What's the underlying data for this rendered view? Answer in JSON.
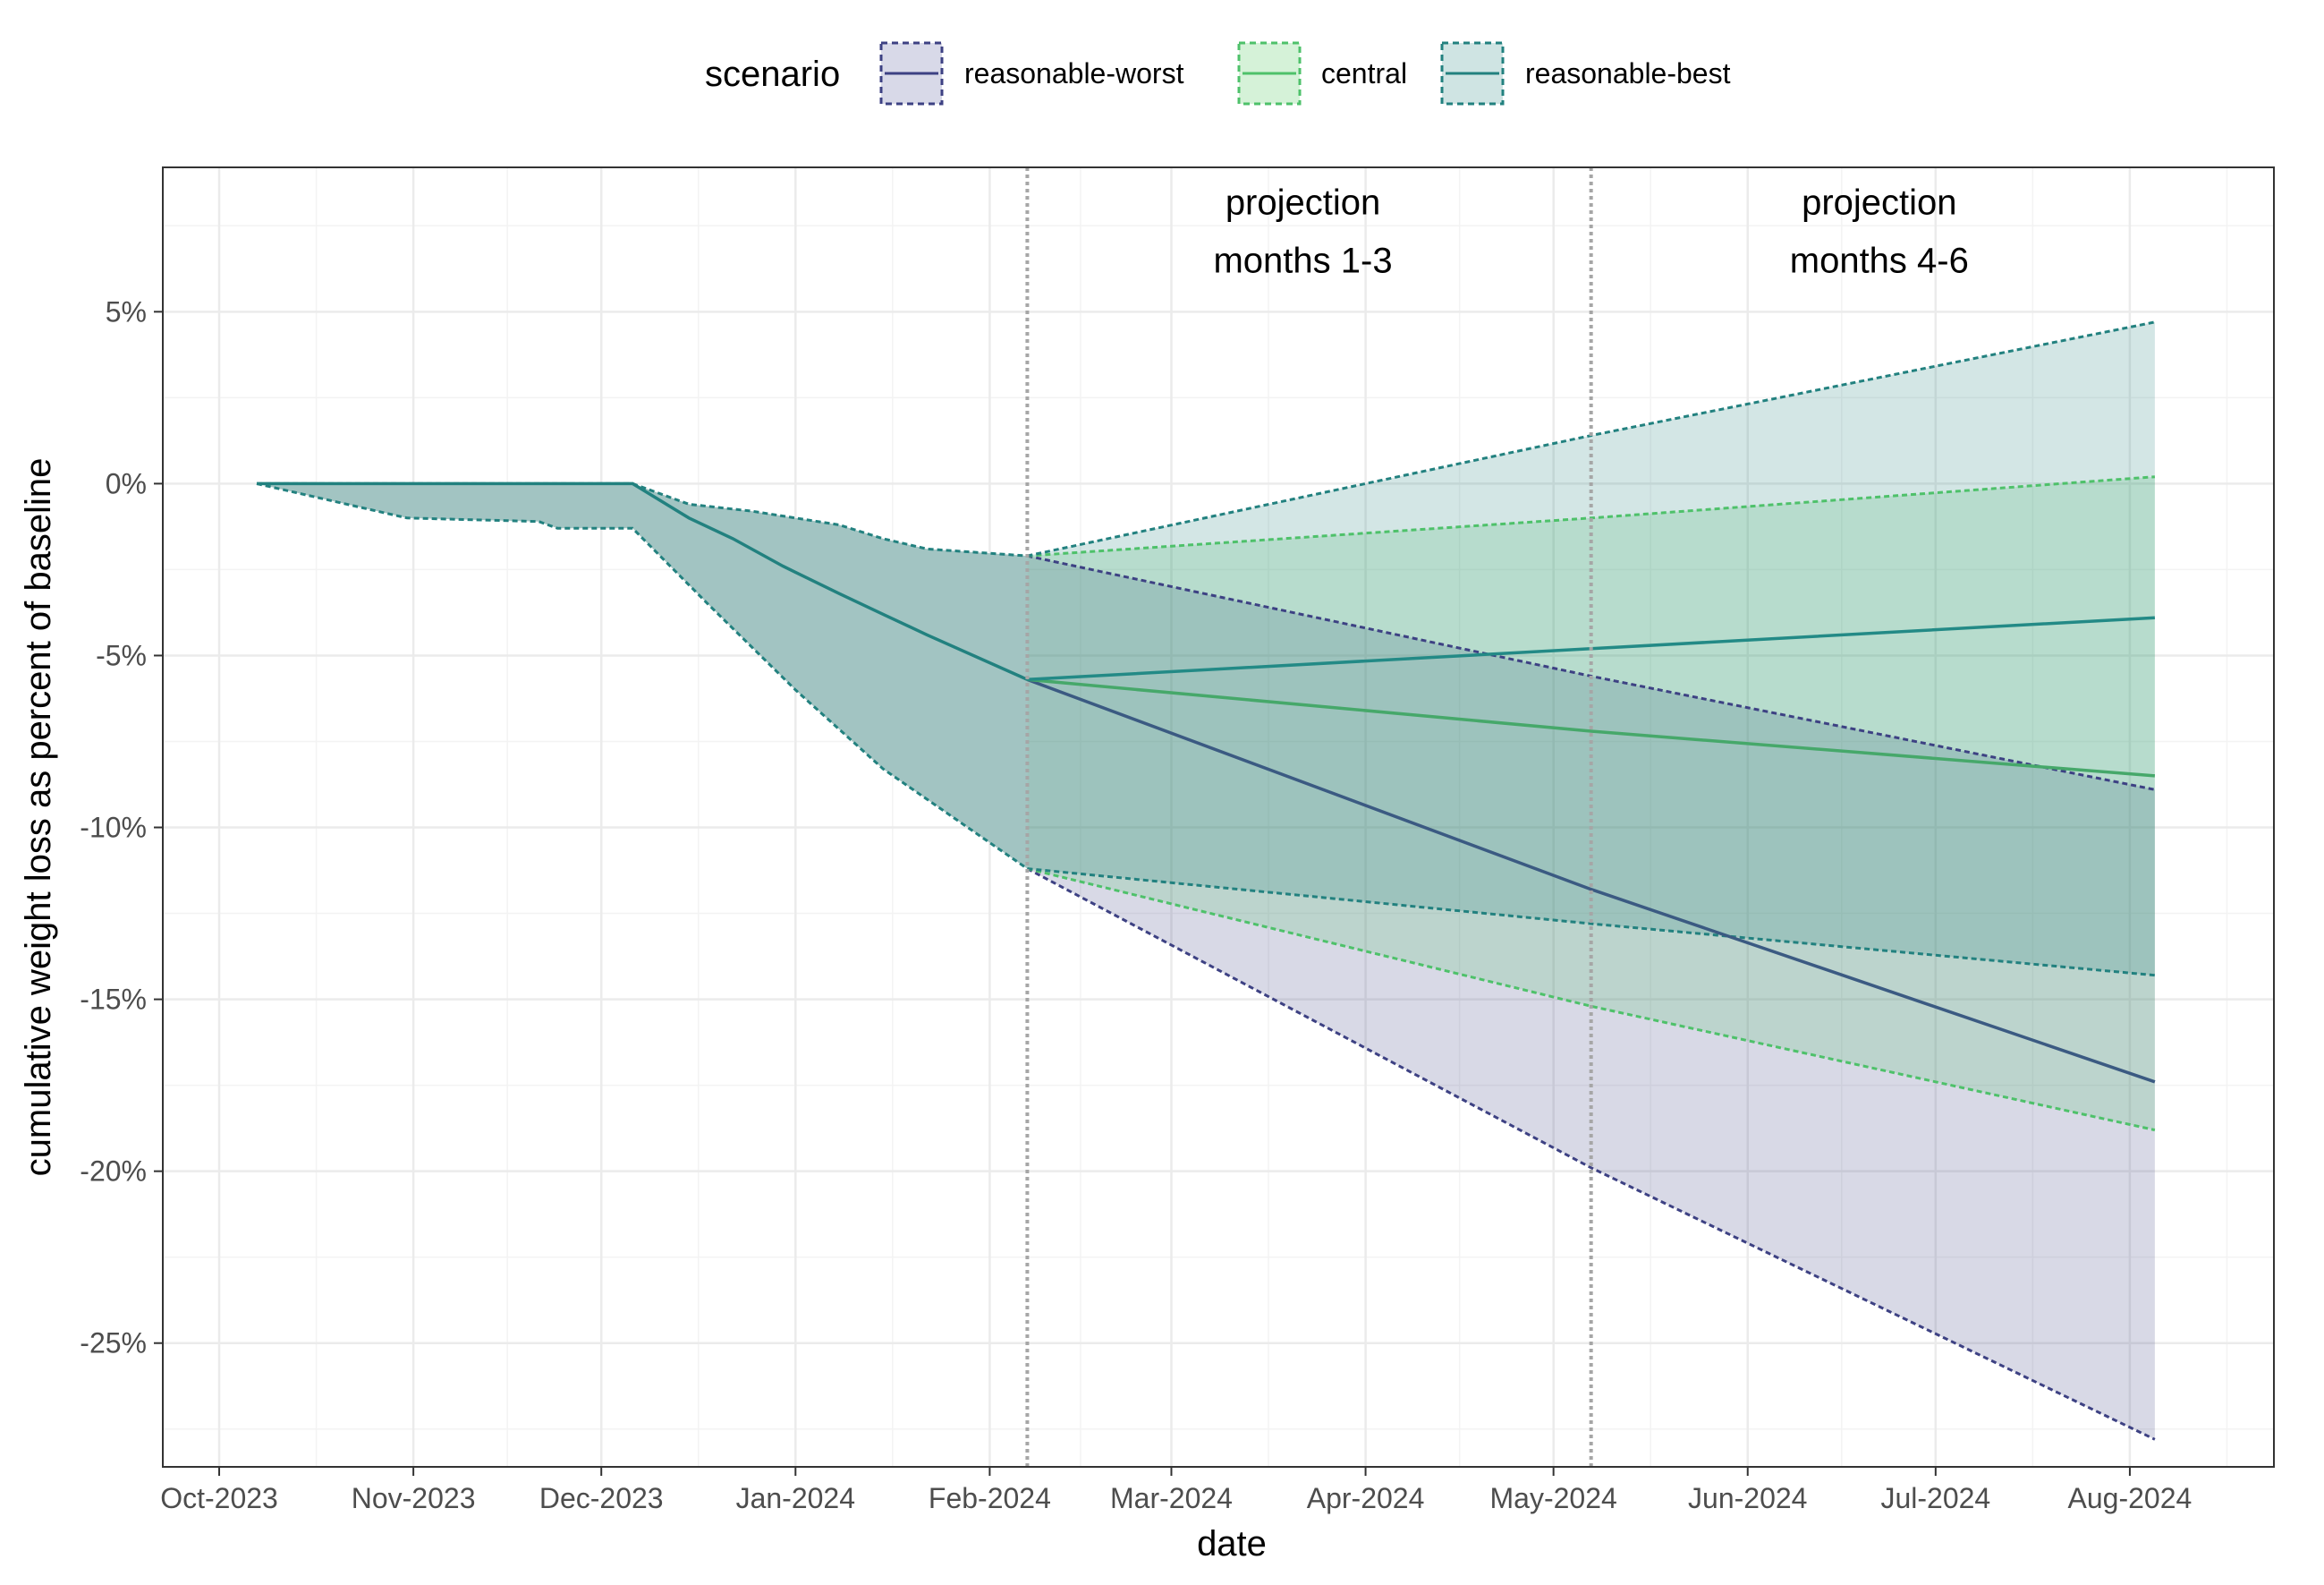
{
  "chart_data": {
    "type": "area",
    "title": "",
    "xlabel": "date",
    "ylabel": "cumulative weight loss as percent of baseline",
    "ylim": [
      -28.6,
      9.2
    ],
    "xlim": [
      "2023-09-22",
      "2024-08-24"
    ],
    "x_ticks": [
      {
        "date": "2023-10-01",
        "label": "Oct-2023"
      },
      {
        "date": "2023-11-01",
        "label": "Nov-2023"
      },
      {
        "date": "2023-12-01",
        "label": "Dec-2023"
      },
      {
        "date": "2024-01-01",
        "label": "Jan-2024"
      },
      {
        "date": "2024-02-01",
        "label": "Feb-2024"
      },
      {
        "date": "2024-03-01",
        "label": "Mar-2024"
      },
      {
        "date": "2024-04-01",
        "label": "Apr-2024"
      },
      {
        "date": "2024-05-01",
        "label": "May-2024"
      },
      {
        "date": "2024-06-01",
        "label": "Jun-2024"
      },
      {
        "date": "2024-07-01",
        "label": "Jul-2024"
      },
      {
        "date": "2024-08-01",
        "label": "Aug-2024"
      }
    ],
    "y_ticks": [
      {
        "value": 5,
        "label": "5%"
      },
      {
        "value": 0,
        "label": "0%"
      },
      {
        "value": -5,
        "label": "-5%"
      },
      {
        "value": -10,
        "label": "-10%"
      },
      {
        "value": -15,
        "label": "-15%"
      },
      {
        "value": -20,
        "label": "-20%"
      },
      {
        "value": -25,
        "label": "-25%"
      }
    ],
    "vlines": [
      "2024-02-07",
      "2024-05-07"
    ],
    "annotations": [
      {
        "lines": [
          "projection",
          "months 1-3"
        ],
        "date": "2024-03-22",
        "y": [
          8.2,
          6.5
        ]
      },
      {
        "lines": [
          "projection",
          "months 4-6"
        ],
        "date": "2024-06-22",
        "y": [
          8.2,
          6.5
        ]
      }
    ],
    "legend": {
      "title": "scenario",
      "position": "top",
      "items": [
        {
          "label": "reasonable-worst",
          "color": "#3d4183",
          "fill": "#d8d9e8"
        },
        {
          "label": "central",
          "color": "#4ec16a",
          "fill": "#d5f2d8"
        },
        {
          "label": "reasonable-best",
          "color": "#22817f",
          "fill": "#cfe4e3"
        }
      ]
    },
    "historical": {
      "mean": [
        {
          "date": "2023-10-07",
          "value": 0.0
        },
        {
          "date": "2023-12-06",
          "value": 0.0
        },
        {
          "date": "2023-12-15",
          "value": -1.0
        },
        {
          "date": "2023-12-22",
          "value": -1.6
        },
        {
          "date": "2023-12-30",
          "value": -2.4
        },
        {
          "date": "2024-01-08",
          "value": -3.2
        },
        {
          "date": "2024-01-15",
          "value": -3.8
        },
        {
          "date": "2024-01-22",
          "value": -4.4
        },
        {
          "date": "2024-02-07",
          "value": -5.7
        }
      ],
      "upper": [
        {
          "date": "2023-10-07",
          "value": 0.0
        },
        {
          "date": "2023-12-06",
          "value": 0.0
        },
        {
          "date": "2023-12-15",
          "value": -0.6
        },
        {
          "date": "2023-12-25",
          "value": -0.8
        },
        {
          "date": "2024-01-01",
          "value": -1.0
        },
        {
          "date": "2024-01-08",
          "value": -1.2
        },
        {
          "date": "2024-01-15",
          "value": -1.6
        },
        {
          "date": "2024-01-22",
          "value": -1.9
        },
        {
          "date": "2024-02-07",
          "value": -2.1
        }
      ],
      "lower": [
        {
          "date": "2023-10-07",
          "value": 0.0
        },
        {
          "date": "2023-10-31",
          "value": -1.0
        },
        {
          "date": "2023-11-21",
          "value": -1.1
        },
        {
          "date": "2023-11-24",
          "value": -1.3
        },
        {
          "date": "2023-12-06",
          "value": -1.3
        },
        {
          "date": "2023-12-18",
          "value": -3.5
        },
        {
          "date": "2024-01-01",
          "value": -6.0
        },
        {
          "date": "2024-01-15",
          "value": -8.3
        },
        {
          "date": "2024-02-07",
          "value": -11.2
        }
      ]
    },
    "series": [
      {
        "name": "reasonable-worst",
        "color": "#3d4183",
        "fill": "#d8d9e8",
        "points": [
          {
            "date": "2024-02-07",
            "mean": -5.7,
            "upper": -2.1,
            "lower": -11.2
          },
          {
            "date": "2024-05-07",
            "mean": -11.8,
            "upper": -5.6,
            "lower": -19.9
          },
          {
            "date": "2024-08-05",
            "mean": -17.4,
            "upper": -8.9,
            "lower": -27.8
          }
        ]
      },
      {
        "name": "central",
        "color": "#4ec16a",
        "fill": "#d5f2d8",
        "points": [
          {
            "date": "2024-02-07",
            "mean": -5.7,
            "upper": -2.1,
            "lower": -11.2
          },
          {
            "date": "2024-05-07",
            "mean": -7.2,
            "upper": -1.0,
            "lower": -15.2
          },
          {
            "date": "2024-08-05",
            "mean": -8.5,
            "upper": 0.2,
            "lower": -18.8
          }
        ]
      },
      {
        "name": "reasonable-best",
        "color": "#22817f",
        "fill": "#cfe4e3",
        "points": [
          {
            "date": "2024-02-07",
            "mean": -5.7,
            "upper": -2.1,
            "lower": -11.2
          },
          {
            "date": "2024-05-07",
            "mean": -4.8,
            "upper": 1.4,
            "lower": -12.8
          },
          {
            "date": "2024-08-05",
            "mean": -3.9,
            "upper": 4.7,
            "lower": -14.3
          }
        ]
      }
    ]
  }
}
